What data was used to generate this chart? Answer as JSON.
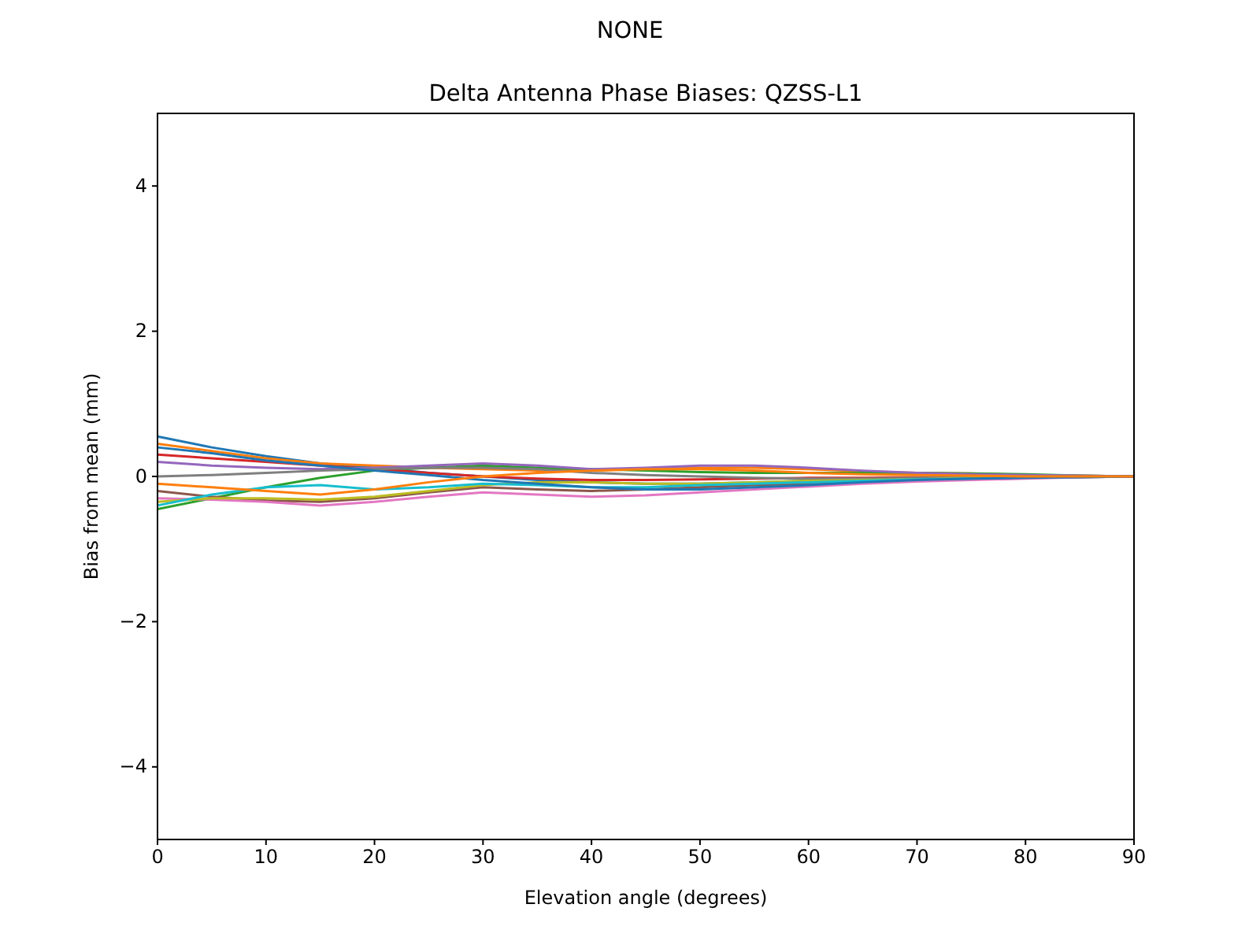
{
  "chart_data": {
    "type": "line",
    "subtitle": "NONE",
    "title": "Delta Antenna Phase Biases: QZSS-L1",
    "xlabel": "Elevation angle (degrees)",
    "ylabel": "Bias from mean (mm)",
    "x": [
      0,
      5,
      10,
      15,
      20,
      25,
      30,
      35,
      40,
      45,
      50,
      55,
      60,
      65,
      70,
      75,
      80,
      85,
      90
    ],
    "xlim": [
      0,
      90
    ],
    "xticks": [
      0,
      10,
      20,
      30,
      40,
      50,
      60,
      70,
      80,
      90
    ],
    "ylim": [
      -5,
      5
    ],
    "yticks": [
      {
        "value": -4,
        "label": "−4"
      },
      {
        "value": -2,
        "label": "−2"
      },
      0,
      2,
      4
    ],
    "grid": false,
    "marker": "none",
    "line_style": "solid",
    "series": [
      {
        "color": "#1f77b4",
        "values": [
          0.55,
          0.4,
          0.28,
          0.18,
          0.12,
          0.05,
          0.0,
          -0.05,
          -0.08,
          -0.1,
          -0.1,
          -0.08,
          -0.06,
          -0.04,
          -0.03,
          -0.02,
          -0.01,
          0,
          0
        ]
      },
      {
        "color": "#ff7f0e",
        "values": [
          0.45,
          0.35,
          0.25,
          0.18,
          0.15,
          0.12,
          0.1,
          0.08,
          0.08,
          0.1,
          0.12,
          0.12,
          0.1,
          0.07,
          0.05,
          0.04,
          0.02,
          0.01,
          0
        ]
      },
      {
        "color": "#2ca02c",
        "values": [
          -0.45,
          -0.3,
          -0.15,
          -0.02,
          0.08,
          0.12,
          0.15,
          0.12,
          0.1,
          0.08,
          0.06,
          0.05,
          0.05,
          0.05,
          0.05,
          0.04,
          0.03,
          0.01,
          0
        ]
      },
      {
        "color": "#d62728",
        "values": [
          0.3,
          0.25,
          0.2,
          0.15,
          0.1,
          0.05,
          0.0,
          -0.03,
          -0.05,
          -0.05,
          -0.04,
          -0.03,
          -0.02,
          -0.02,
          -0.01,
          -0.01,
          0,
          0,
          0
        ]
      },
      {
        "color": "#9467bd",
        "values": [
          0.2,
          0.15,
          0.12,
          0.1,
          0.12,
          0.15,
          0.18,
          0.15,
          0.1,
          0.12,
          0.15,
          0.15,
          0.12,
          0.08,
          0.05,
          0.03,
          0.02,
          0.01,
          0
        ]
      },
      {
        "color": "#8c564b",
        "values": [
          -0.2,
          -0.28,
          -0.33,
          -0.35,
          -0.3,
          -0.22,
          -0.15,
          -0.18,
          -0.2,
          -0.18,
          -0.15,
          -0.12,
          -0.1,
          -0.08,
          -0.06,
          -0.04,
          -0.02,
          -0.01,
          0
        ]
      },
      {
        "color": "#e377c2",
        "values": [
          -0.3,
          -0.32,
          -0.35,
          -0.4,
          -0.35,
          -0.28,
          -0.22,
          -0.25,
          -0.28,
          -0.26,
          -0.22,
          -0.18,
          -0.14,
          -0.1,
          -0.07,
          -0.05,
          -0.03,
          -0.01,
          0
        ]
      },
      {
        "color": "#7f7f7f",
        "values": [
          0.0,
          0.02,
          0.05,
          0.08,
          0.1,
          0.12,
          0.12,
          0.1,
          0.05,
          0.02,
          0.0,
          -0.02,
          -0.03,
          -0.03,
          -0.02,
          -0.01,
          0,
          0,
          0
        ]
      },
      {
        "color": "#bcbd22",
        "values": [
          -0.35,
          -0.3,
          -0.3,
          -0.32,
          -0.28,
          -0.2,
          -0.12,
          -0.08,
          -0.08,
          -0.1,
          -0.1,
          -0.08,
          -0.06,
          -0.05,
          -0.04,
          -0.02,
          -0.01,
          null,
          null
        ]
      },
      {
        "color": "#17becf",
        "values": [
          -0.4,
          -0.25,
          -0.15,
          -0.12,
          -0.18,
          -0.15,
          -0.1,
          -0.12,
          -0.15,
          -0.15,
          -0.12,
          -0.1,
          -0.08,
          -0.06,
          -0.04,
          -0.03,
          null,
          null,
          null
        ]
      },
      {
        "color": "#1f77b4",
        "values": [
          0.4,
          0.32,
          0.22,
          0.15,
          0.08,
          0.02,
          -0.05,
          -0.1,
          -0.15,
          -0.18,
          -0.18,
          -0.15,
          -0.12,
          -0.08,
          -0.05,
          -0.03,
          -0.02,
          -0.01,
          0
        ]
      },
      {
        "color": "#ff7f0e",
        "values": [
          -0.1,
          -0.15,
          -0.2,
          -0.25,
          -0.18,
          -0.08,
          0.0,
          0.05,
          0.08,
          0.1,
          0.1,
          0.08,
          0.05,
          0.03,
          0.02,
          0.01,
          0,
          0,
          0
        ]
      }
    ]
  }
}
